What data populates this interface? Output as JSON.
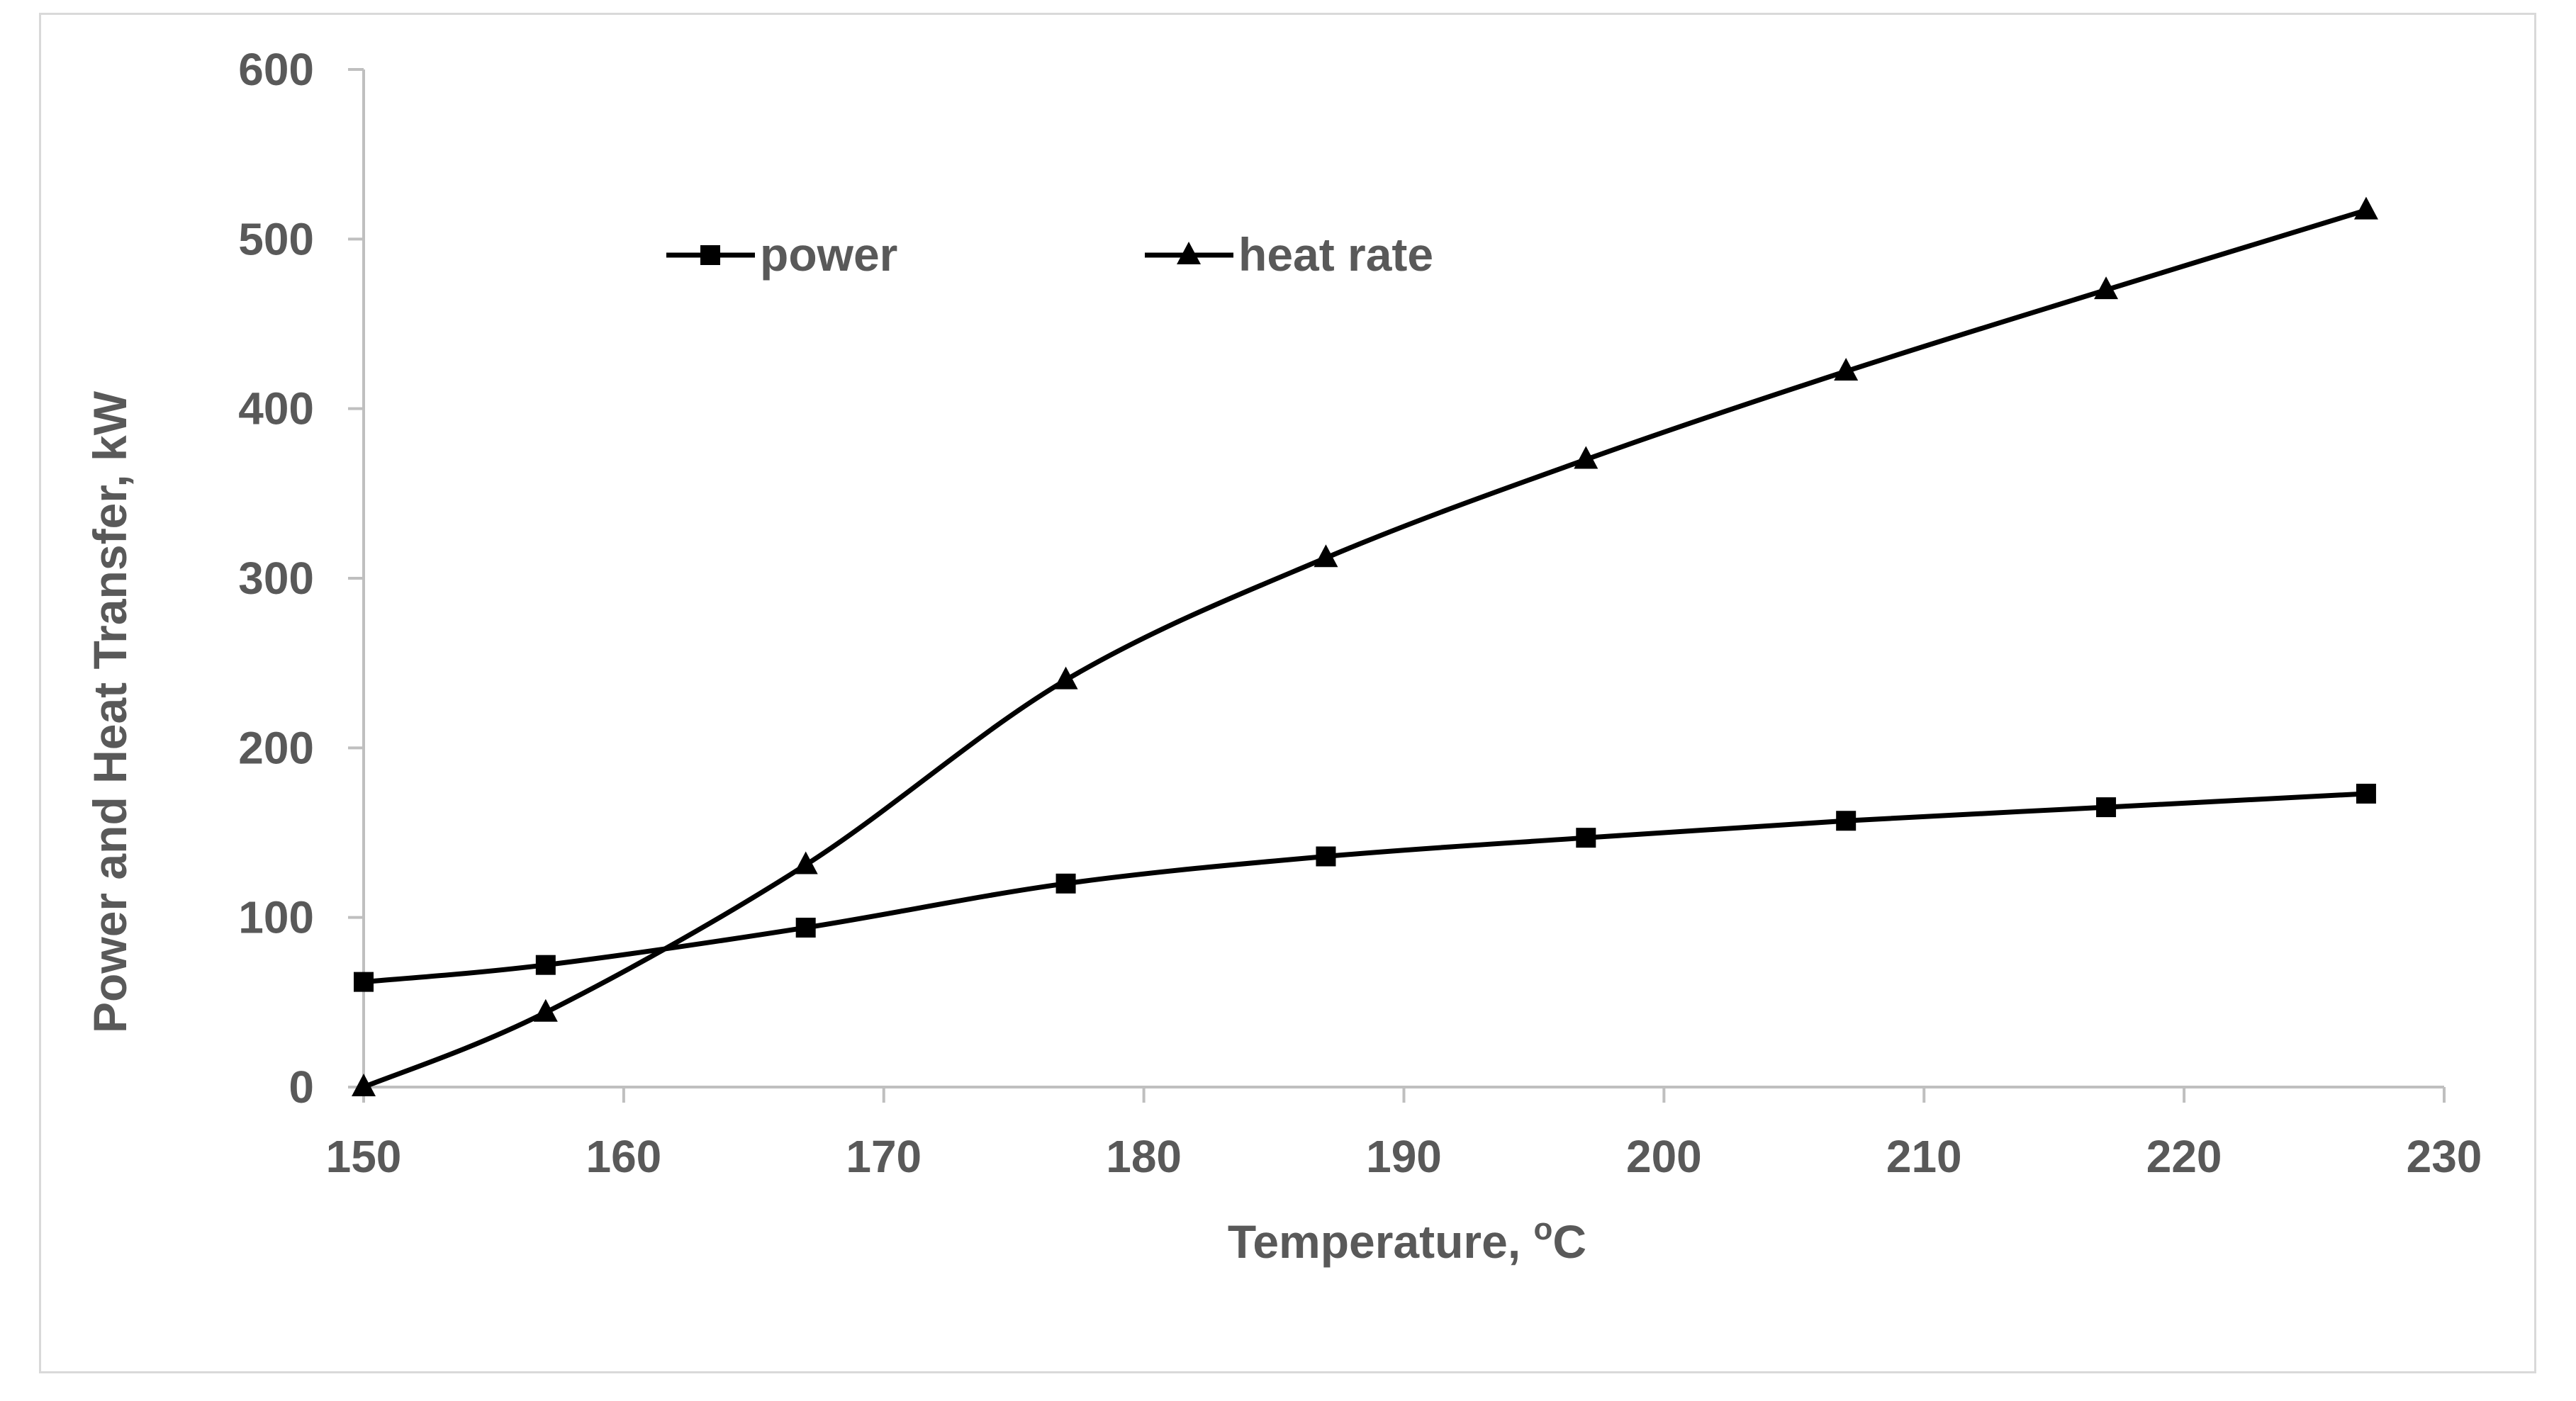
{
  "chart_data": {
    "type": "line",
    "title": "",
    "xlabel": "Temperature, ",
    "xlabel_superscript": "o",
    "xlabel_unit": "C",
    "ylabel": "Power and Heat Transfer, kW",
    "xlim": [
      150,
      230
    ],
    "ylim": [
      0,
      600
    ],
    "x_ticks": [
      150,
      160,
      170,
      180,
      190,
      200,
      210,
      220,
      230
    ],
    "y_ticks": [
      0,
      100,
      200,
      300,
      400,
      500,
      600
    ],
    "grid": false,
    "legend_position": "top-left",
    "x": [
      150,
      157,
      167,
      177,
      187,
      197,
      207,
      217,
      227
    ],
    "series": [
      {
        "name": "power",
        "marker": "square",
        "color": "#000000",
        "values": [
          62,
          72,
          94,
          120,
          136,
          147,
          157,
          165,
          173
        ]
      },
      {
        "name": "heat rate",
        "marker": "triangle",
        "color": "#000000",
        "values": [
          0,
          44,
          131,
          240,
          312,
          370,
          422,
          470,
          517
        ]
      }
    ],
    "colors": {
      "axis": "#bfbfbf",
      "text": "#595959",
      "frame": "#d9d9d9",
      "series": "#000000"
    }
  }
}
